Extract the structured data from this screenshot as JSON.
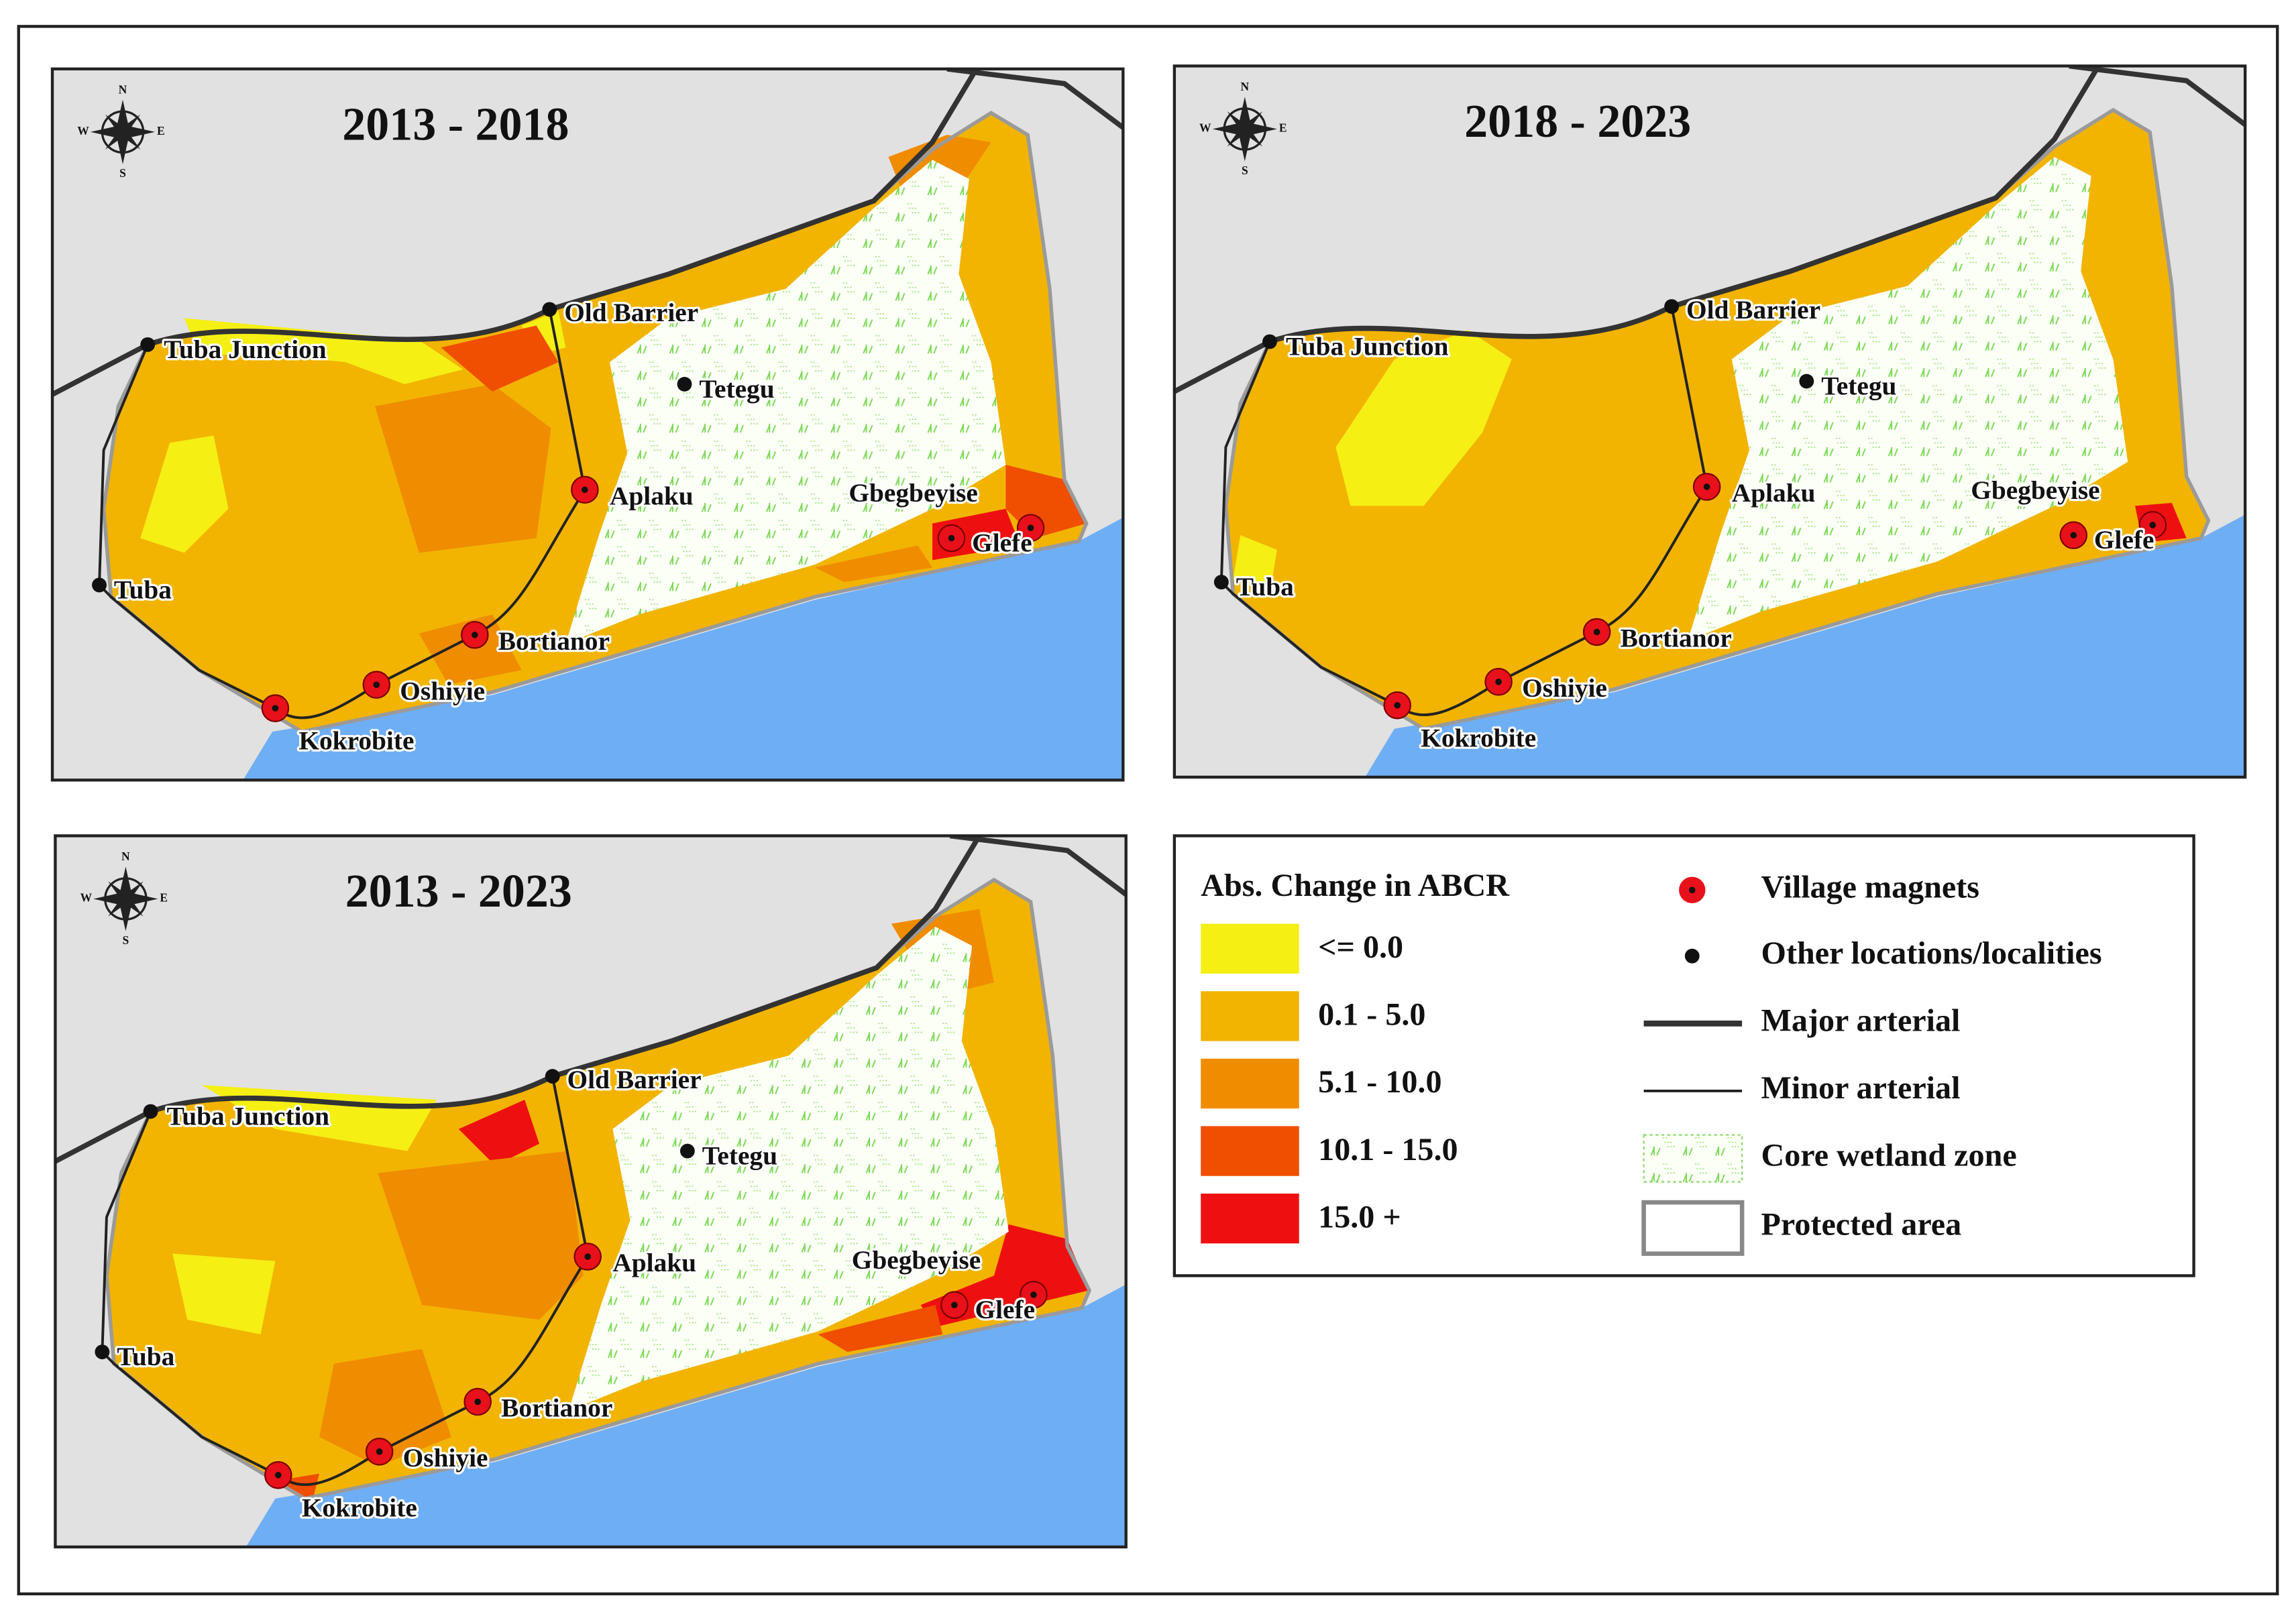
{
  "maps": [
    {
      "title": "2013 - 2018"
    },
    {
      "title": "2018 - 2023"
    },
    {
      "title": "2013 - 2023"
    }
  ],
  "compass": {
    "n": "N",
    "s": "S",
    "e": "E",
    "w": "W"
  },
  "village_magnets": [
    "Aplaku",
    "Gbegbeyise",
    "Glefe",
    "Bortianor",
    "Oshiyie",
    "Kokrobite"
  ],
  "other_locations": [
    "Tuba Junction",
    "Old Barrier",
    "Tetegu",
    "Tuba"
  ],
  "legend": {
    "title": "Abs. Change in ABCR",
    "classes": [
      {
        "label": "<= 0.0",
        "color": "#f5ef14"
      },
      {
        "label": "0.1 - 5.0",
        "color": "#f2b400"
      },
      {
        "label": "5.1 - 10.0",
        "color": "#f08c00"
      },
      {
        "label": "10.1 - 15.0",
        "color": "#f04e00"
      },
      {
        "label": "15.0 +",
        "color": "#ee1010"
      }
    ],
    "symbols": [
      "Village magnets",
      "Other locations/localities",
      "Major arterial",
      "Minor arterial",
      "Core wetland zone",
      "Protected area"
    ]
  }
}
